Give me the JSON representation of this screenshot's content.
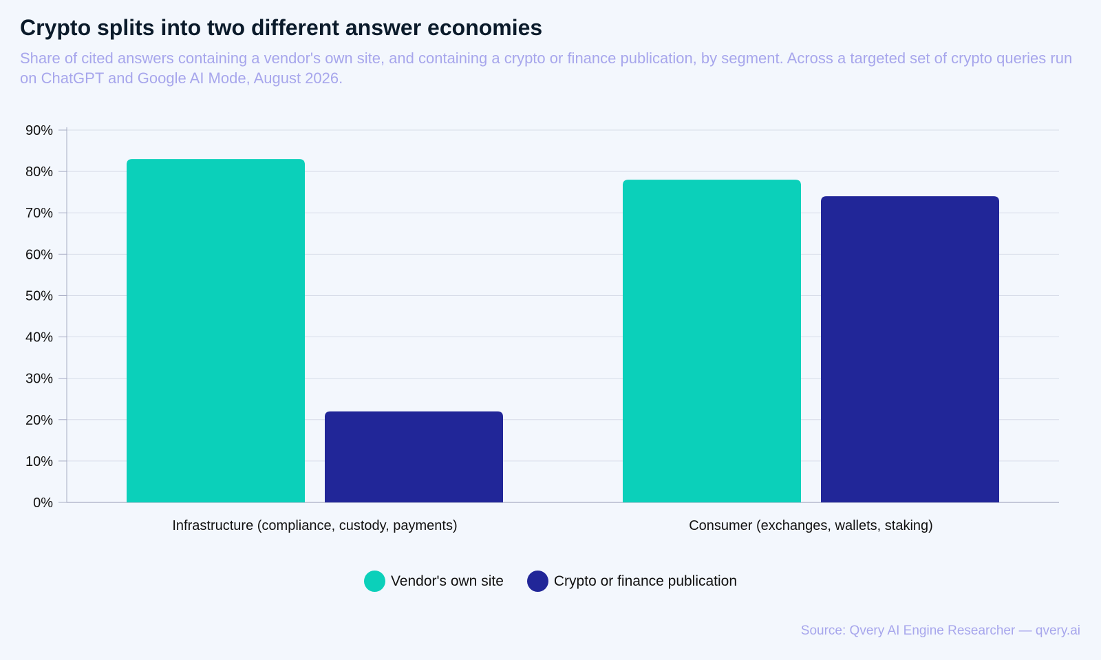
{
  "title": "Crypto splits into two different answer economies",
  "subtitle": "Share of cited answers containing a vendor's own site, and containing a crypto or finance publication, by segment. Across a targeted set of crypto queries run on ChatGPT and Google AI Mode, August 2026.",
  "source": "Source: Qvery AI Engine Researcher — qvery.ai",
  "colors": {
    "vendor": "#0bd0ba",
    "publication": "#212698",
    "grid": "#d7dce8",
    "axis": "#a7acc4"
  },
  "chart_data": {
    "type": "bar",
    "categories": [
      "Infrastructure (compliance, custody, payments)",
      "Consumer (exchanges, wallets, staking)"
    ],
    "series": [
      {
        "name": "Vendor's own site",
        "values": [
          83,
          78
        ]
      },
      {
        "name": "Crypto or finance publication",
        "values": [
          22,
          74
        ]
      }
    ],
    "yticks": [
      "0%",
      "10%",
      "20%",
      "30%",
      "40%",
      "50%",
      "60%",
      "70%",
      "80%",
      "90%"
    ],
    "ylim": [
      0,
      90
    ],
    "grid": true,
    "legend_position": "bottom-center"
  }
}
